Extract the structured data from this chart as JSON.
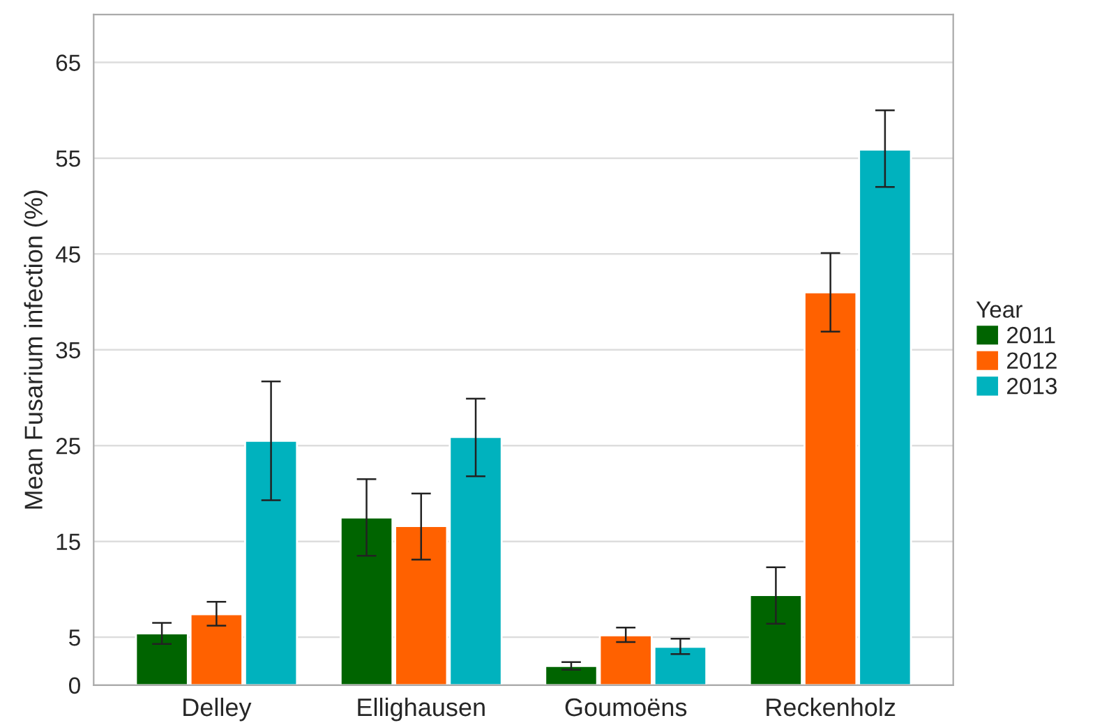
{
  "chart_data": {
    "type": "bar",
    "ylabel": "Mean Fusarium infection (%)",
    "legend_title": "Year",
    "legend": "right",
    "categories": [
      "Delley",
      "Ellighausen",
      "Goumoëns",
      "Reckenholz"
    ],
    "series": [
      {
        "name": "2011",
        "color": "#006400",
        "values": [
          5.4,
          17.5,
          2.0,
          9.4
        ],
        "errors": [
          [
            4.3,
            6.5
          ],
          [
            13.5,
            21.5
          ],
          [
            1.6,
            2.4
          ],
          [
            6.4,
            12.3
          ]
        ]
      },
      {
        "name": "2012",
        "color": "#ff6100",
        "values": [
          7.4,
          16.6,
          5.2,
          41.0
        ],
        "errors": [
          [
            6.2,
            8.7
          ],
          [
            13.1,
            20.0
          ],
          [
            4.5,
            6.0
          ],
          [
            36.9,
            45.1
          ]
        ]
      },
      {
        "name": "2013",
        "color": "#00b2be",
        "values": [
          25.5,
          25.9,
          4.0,
          55.9
        ],
        "errors": [
          [
            19.3,
            31.7
          ],
          [
            21.8,
            29.9
          ],
          [
            3.25,
            4.85
          ],
          [
            52.0,
            60.0
          ]
        ]
      }
    ],
    "ylim": [
      0,
      70
    ],
    "yticks": [
      0,
      5,
      15,
      25,
      35,
      45,
      55,
      65
    ],
    "grid": "y"
  }
}
